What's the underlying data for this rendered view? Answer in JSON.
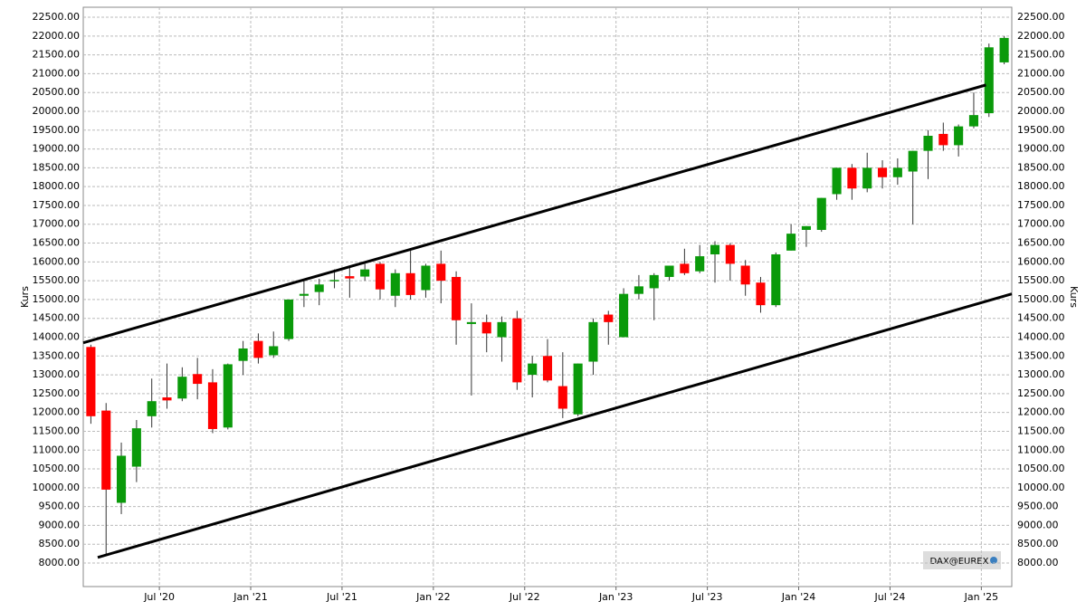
{
  "chart_data": {
    "type": "candlestick",
    "y_label": "Kurs",
    "badge": "DAX@EUREX",
    "categories": [
      null,
      null,
      null,
      null,
      null,
      "Jul '20",
      null,
      null,
      null,
      null,
      null,
      "Jan '21",
      null,
      null,
      null,
      null,
      null,
      "Jul '21",
      null,
      null,
      null,
      null,
      null,
      "Jan '22",
      null,
      null,
      null,
      null,
      null,
      "Jul '22",
      null,
      null,
      null,
      null,
      null,
      "Jan '23",
      null,
      null,
      null,
      null,
      null,
      "Jul '23",
      null,
      null,
      null,
      null,
      null,
      "Jan '24",
      null,
      null,
      null,
      null,
      null,
      "Jul '24",
      null,
      null,
      null,
      null,
      null,
      "Jan '25",
      null
    ],
    "open": [
      13740,
      12050,
      9600,
      10560,
      11900,
      12400,
      12370,
      13020,
      12800,
      11600,
      13370,
      13900,
      13520,
      13950,
      15100,
      15200,
      15500,
      15620,
      15610,
      15950,
      15100,
      15700,
      15250,
      15950,
      15600,
      14350,
      14400,
      14000,
      14500,
      13000,
      13500,
      12700,
      11950,
      13350,
      14600,
      14000,
      15150,
      15300,
      15600,
      15950,
      15750,
      16200,
      16450,
      15900,
      15450,
      14850,
      16300,
      16850,
      16850,
      17800,
      18500,
      17950,
      18500,
      18250,
      18400,
      18950,
      19400,
      19100,
      19600,
      19950,
      21300
    ],
    "high": [
      13800,
      12250,
      11200,
      11800,
      12900,
      13300,
      13200,
      13450,
      13150,
      13300,
      13900,
      14100,
      14150,
      15000,
      15500,
      15550,
      15800,
      15850,
      15950,
      16000,
      15800,
      16300,
      15950,
      16300,
      15750,
      14900,
      14600,
      14550,
      14700,
      13500,
      13950,
      13600,
      13300,
      14500,
      14700,
      15300,
      15650,
      15700,
      15900,
      16350,
      16450,
      16550,
      16500,
      16050,
      15600,
      16250,
      17000,
      16950,
      17700,
      18500,
      18600,
      18900,
      18700,
      18750,
      18950,
      19500,
      19700,
      19650,
      20500,
      21800,
      22000
    ],
    "low": [
      11700,
      8180,
      9300,
      10150,
      11600,
      12100,
      12300,
      12350,
      11450,
      11550,
      13000,
      13300,
      13450,
      13900,
      14800,
      14850,
      15300,
      15050,
      15500,
      15000,
      14800,
      15000,
      15050,
      14900,
      13800,
      12450,
      13600,
      13350,
      12600,
      12400,
      12800,
      11850,
      11900,
      13000,
      13800,
      14000,
      15000,
      14450,
      15500,
      15650,
      15700,
      15450,
      15500,
      15100,
      14650,
      14800,
      16300,
      16400,
      16800,
      17650,
      17650,
      17850,
      17950,
      18050,
      17000,
      18200,
      18950,
      18800,
      19550,
      19850,
      21250
    ],
    "close": [
      11900,
      9950,
      10850,
      11580,
      12300,
      12320,
      12950,
      12760,
      11560,
      13280,
      13700,
      13450,
      13760,
      15000,
      15150,
      15400,
      15520,
      15560,
      15800,
      15270,
      15700,
      15120,
      15900,
      15500,
      14450,
      14400,
      14100,
      14400,
      12800,
      13300,
      12850,
      12100,
      13300,
      14400,
      14400,
      15150,
      15350,
      15650,
      15900,
      15700,
      16150,
      16450,
      15950,
      15400,
      14850,
      16200,
      16750,
      16950,
      17700,
      18500,
      17950,
      18500,
      18250,
      18500,
      18950,
      19350,
      19100,
      19600,
      19900,
      21700,
      21950
    ],
    "up_color": "#0a9a0a",
    "down_color": "#ff0000",
    "trendlines": [
      {
        "x": [
          -0.5,
          58.8
        ],
        "y": [
          13850,
          20700
        ]
      },
      {
        "x": [
          0.45,
          60.5
        ],
        "y": [
          8150,
          15150
        ]
      }
    ],
    "ylim": [
      7375,
      22765
    ],
    "yticks": [
      {
        "value": 8000,
        "label": "8000.00"
      },
      {
        "value": 8500,
        "label": "8500.00"
      },
      {
        "value": 9000,
        "label": "9000.00"
      },
      {
        "value": 9500,
        "label": "9500.00"
      },
      {
        "value": 10000,
        "label": "10000.00"
      },
      {
        "value": 10500,
        "label": "10500.00"
      },
      {
        "value": 11000,
        "label": "11000.00"
      },
      {
        "value": 11500,
        "label": "11500.00"
      },
      {
        "value": 12000,
        "label": "12000.00"
      },
      {
        "value": 12500,
        "label": "12500.00"
      },
      {
        "value": 13000,
        "label": "13000.00"
      },
      {
        "value": 13500,
        "label": "13500.00"
      },
      {
        "value": 14000,
        "label": "14000.00"
      },
      {
        "value": 14500,
        "label": "14500.00"
      },
      {
        "value": 15000,
        "label": "15000.00"
      },
      {
        "value": 15500,
        "label": "15500.00"
      },
      {
        "value": 16000,
        "label": "16000.00"
      },
      {
        "value": 16500,
        "label": "16500.00"
      },
      {
        "value": 17000,
        "label": "17000.00"
      },
      {
        "value": 17500,
        "label": "17500.00"
      },
      {
        "value": 18000,
        "label": "18000.00"
      },
      {
        "value": 18500,
        "label": "18500.00"
      },
      {
        "value": 19000,
        "label": "19000.00"
      },
      {
        "value": 19500,
        "label": "19500.00"
      },
      {
        "value": 20000,
        "label": "20000.00"
      },
      {
        "value": 20500,
        "label": "20500.00"
      },
      {
        "value": 21000,
        "label": "21000.00"
      },
      {
        "value": 21500,
        "label": "21500.00"
      },
      {
        "value": 22000,
        "label": "22000.00"
      },
      {
        "value": 22500,
        "label": "22500.00"
      }
    ],
    "grid": true
  }
}
